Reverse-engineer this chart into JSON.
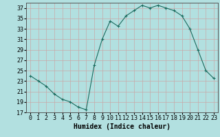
{
  "x": [
    0,
    1,
    2,
    3,
    4,
    5,
    6,
    7,
    8,
    9,
    10,
    11,
    12,
    13,
    14,
    15,
    16,
    17,
    18,
    19,
    20,
    21,
    22,
    23
  ],
  "y": [
    24,
    23,
    22,
    20.5,
    19.5,
    19,
    18,
    17.5,
    26,
    31,
    34.5,
    33.5,
    35.5,
    36.5,
    37.5,
    37,
    37.5,
    37,
    36.5,
    35.5,
    33,
    29,
    25,
    23.5
  ],
  "line_color": "#1a6b5e",
  "marker": "+",
  "bg_color": "#b2e0e0",
  "xlabel": "Humidex (Indice chaleur)",
  "ylim": [
    17,
    38
  ],
  "xlim": [
    -0.5,
    23.5
  ],
  "yticks": [
    17,
    19,
    21,
    23,
    25,
    27,
    29,
    31,
    33,
    35,
    37
  ],
  "xticks": [
    0,
    1,
    2,
    3,
    4,
    5,
    6,
    7,
    8,
    9,
    10,
    11,
    12,
    13,
    14,
    15,
    16,
    17,
    18,
    19,
    20,
    21,
    22,
    23
  ],
  "xlabel_fontsize": 7,
  "tick_fontsize": 6
}
